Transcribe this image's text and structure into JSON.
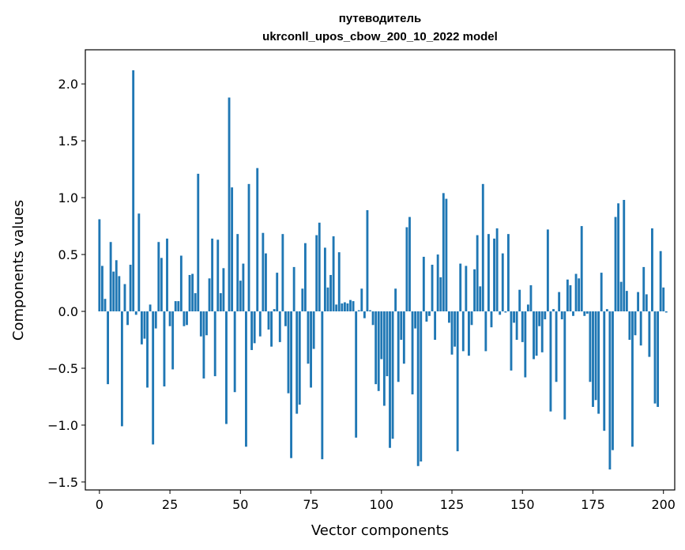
{
  "chart_data": {
    "type": "bar",
    "title": "путеводитель",
    "subtitle": "ukrconll_upos_cbow_200_10_2022 model",
    "xlabel": "Vector components",
    "ylabel": "Components values",
    "xlim": [
      -5,
      204
    ],
    "ylim": [
      -1.57,
      2.3
    ],
    "xticks": [
      0,
      25,
      50,
      75,
      100,
      125,
      150,
      175,
      200
    ],
    "yticks": [
      -1.5,
      -1.0,
      -0.5,
      0.0,
      0.5,
      1.0,
      1.5,
      2.0
    ],
    "ytick_labels": [
      "−1.5",
      "−1.0",
      "−0.5",
      "0.0",
      "0.5",
      "1.0",
      "1.5",
      "2.0"
    ],
    "bar_color": "#1f77b4",
    "values": [
      0.81,
      0.4,
      0.11,
      -0.64,
      0.61,
      0.35,
      0.45,
      0.31,
      -1.01,
      0.24,
      -0.12,
      0.41,
      2.12,
      -0.03,
      0.86,
      -0.29,
      -0.24,
      -0.67,
      0.06,
      -1.17,
      -0.15,
      0.61,
      0.47,
      -0.66,
      0.64,
      -0.13,
      -0.51,
      0.09,
      0.09,
      0.49,
      -0.13,
      -0.12,
      0.32,
      0.33,
      0.16,
      1.21,
      -0.22,
      -0.59,
      -0.21,
      0.29,
      0.64,
      -0.57,
      0.63,
      0.16,
      0.38,
      -0.99,
      1.88,
      1.09,
      -0.71,
      0.68,
      0.27,
      0.42,
      -1.19,
      1.12,
      -0.34,
      -0.28,
      1.26,
      -0.22,
      0.69,
      0.51,
      -0.16,
      -0.31,
      0.02,
      0.34,
      -0.27,
      0.68,
      -0.13,
      -0.72,
      -1.29,
      0.39,
      -0.9,
      -0.82,
      0.2,
      0.6,
      -0.46,
      -0.67,
      -0.33,
      0.67,
      0.78,
      -1.3,
      0.56,
      0.21,
      0.32,
      0.66,
      0.06,
      0.52,
      0.07,
      0.08,
      0.07,
      0.1,
      0.09,
      -1.11,
      0.01,
      0.2,
      -0.06,
      0.89,
      0.01,
      -0.12,
      -0.64,
      -0.7,
      -0.42,
      -0.83,
      -0.57,
      -1.2,
      -1.12,
      0.2,
      -0.62,
      -0.25,
      -0.46,
      0.74,
      0.83,
      -0.73,
      -0.15,
      -1.36,
      -1.32,
      0.48,
      -0.09,
      -0.04,
      0.41,
      -0.25,
      0.5,
      0.3,
      1.04,
      0.99,
      -0.1,
      -0.38,
      -0.31,
      -1.23,
      0.42,
      -0.35,
      0.4,
      -0.39,
      -0.12,
      0.37,
      0.67,
      0.22,
      1.12,
      -0.35,
      0.68,
      -0.14,
      0.64,
      0.73,
      -0.03,
      0.51,
      -0.01,
      0.68,
      -0.52,
      -0.1,
      -0.25,
      0.19,
      -0.27,
      -0.58,
      0.06,
      0.23,
      -0.42,
      -0.39,
      -0.13,
      -0.36,
      -0.07,
      0.72,
      -0.88,
      0.02,
      -0.62,
      0.17,
      -0.07,
      -0.95,
      0.28,
      0.23,
      -0.04,
      0.33,
      0.29,
      0.75,
      -0.04,
      -0.02,
      -0.62,
      -0.84,
      -0.78,
      -0.9,
      0.34,
      -1.05,
      0.02,
      -1.39,
      -1.22,
      0.83,
      0.95,
      0.26,
      0.98,
      0.18,
      -0.25,
      -1.19,
      -0.21,
      0.17,
      -0.3,
      0.39,
      0.15,
      -0.4,
      0.73,
      -0.81,
      -0.84,
      0.53,
      0.21,
      -0.01
    ]
  }
}
